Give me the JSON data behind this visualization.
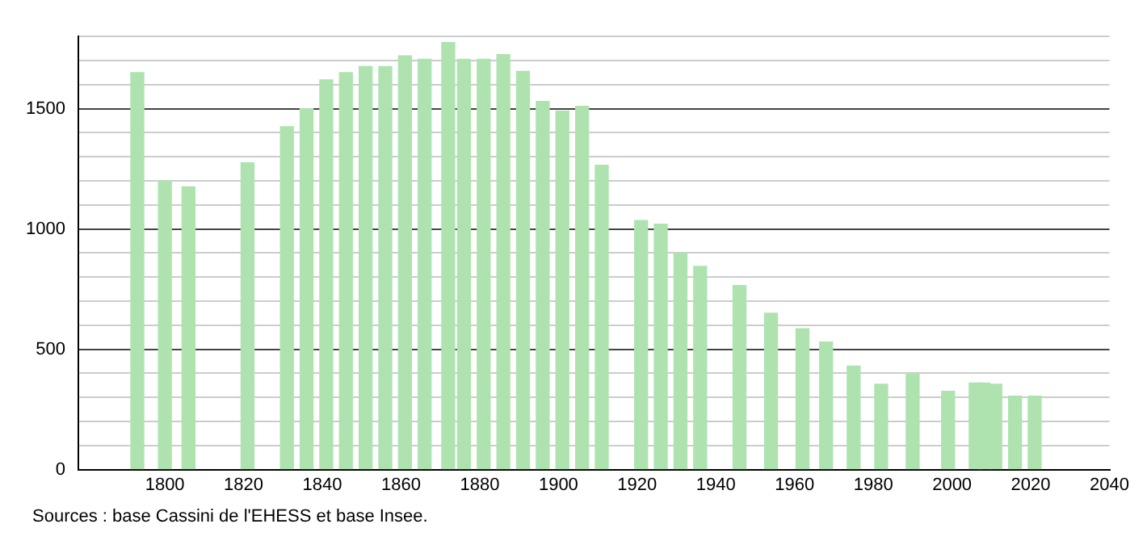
{
  "chart_data": {
    "type": "bar",
    "x": [
      1793,
      1800,
      1806,
      1821,
      1831,
      1836,
      1841,
      1846,
      1851,
      1856,
      1861,
      1866,
      1872,
      1876,
      1881,
      1886,
      1891,
      1896,
      1901,
      1906,
      1911,
      1921,
      1926,
      1931,
      1936,
      1946,
      1954,
      1962,
      1968,
      1975,
      1982,
      1990,
      1999,
      2006,
      2008,
      2011,
      2016,
      2021
    ],
    "values": [
      1650,
      1200,
      1175,
      1275,
      1425,
      1500,
      1620,
      1650,
      1675,
      1675,
      1720,
      1705,
      1775,
      1705,
      1705,
      1725,
      1655,
      1530,
      1490,
      1510,
      1265,
      1035,
      1020,
      900,
      845,
      765,
      650,
      585,
      530,
      430,
      355,
      400,
      325,
      360,
      360,
      355,
      305,
      305
    ],
    "color": "#aee3b0",
    "xlim": [
      1778,
      2040
    ],
    "xticks": [
      1800,
      1820,
      1840,
      1860,
      1880,
      1900,
      1920,
      1940,
      1960,
      1980,
      2000,
      2020,
      2040
    ],
    "ylim": [
      0,
      1800
    ],
    "yticks": [
      0,
      {
        "value": 100,
        "label": null
      },
      {
        "value": 200,
        "label": null
      },
      {
        "value": 300,
        "label": null
      },
      {
        "value": 400,
        "label": null
      },
      500,
      {
        "value": 600,
        "label": null
      },
      {
        "value": 700,
        "label": null
      },
      {
        "value": 800,
        "label": null
      },
      {
        "value": 900,
        "label": null
      },
      1000,
      {
        "value": 1100,
        "label": null
      },
      {
        "value": 1200,
        "label": null
      },
      {
        "value": 1300,
        "label": null
      },
      {
        "value": 1400,
        "label": null
      },
      1500,
      {
        "value": 1600,
        "label": null
      },
      {
        "value": 1700,
        "label": null
      },
      {
        "value": 1800,
        "label": null
      }
    ],
    "grid": "y",
    "legend": false,
    "annotations": [
      "Sources : base Cassini de l'EHESS et base Insee."
    ]
  }
}
